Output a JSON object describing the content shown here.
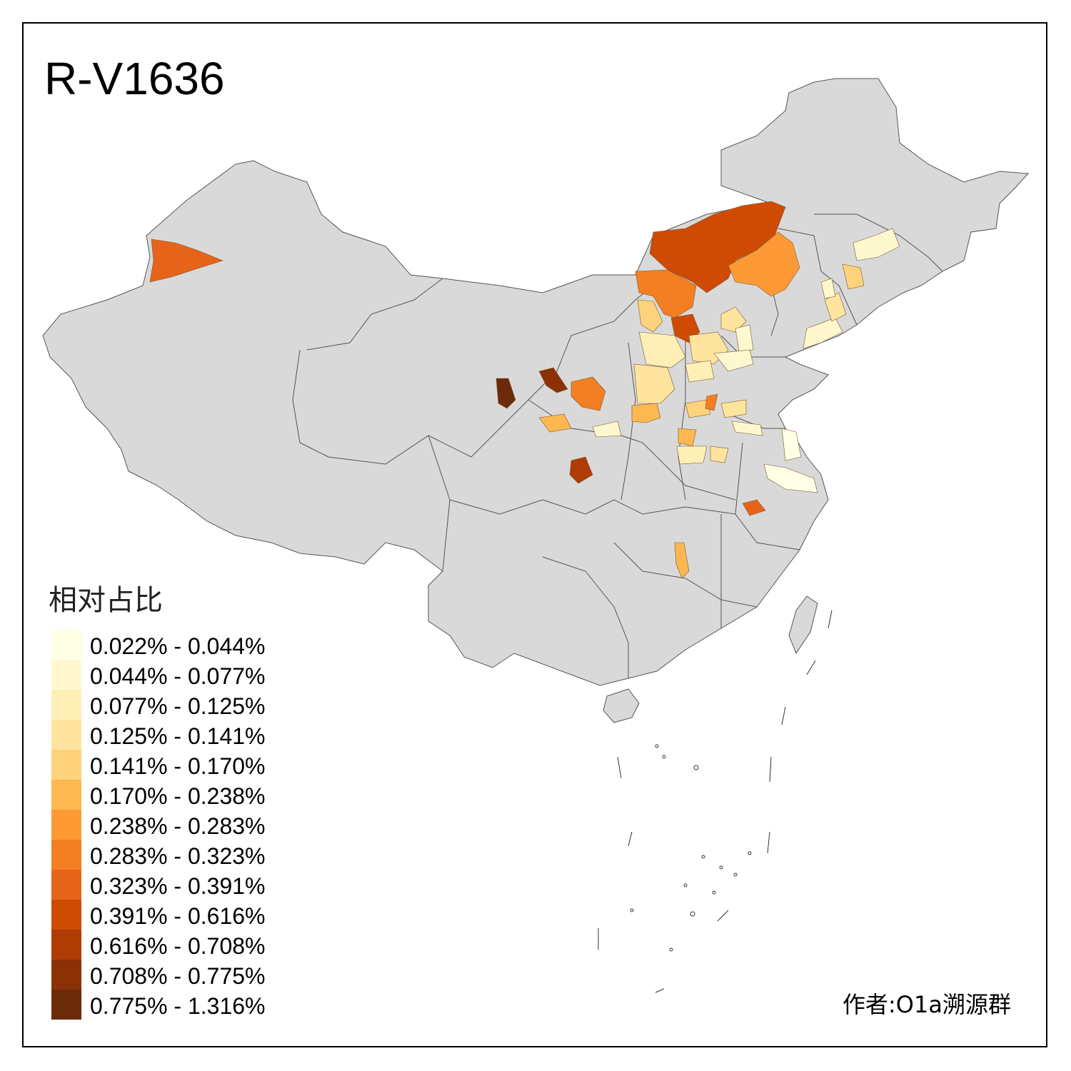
{
  "title": "R-V1636",
  "legend": {
    "title": "相对占比",
    "items": [
      {
        "label": "0.022% - 0.044%",
        "color": "#FFFFE5"
      },
      {
        "label": "0.044% - 0.077%",
        "color": "#FFF8CF"
      },
      {
        "label": "0.077% - 0.125%",
        "color": "#FEEFB6"
      },
      {
        "label": "0.125% - 0.141%",
        "color": "#FEE49E"
      },
      {
        "label": "0.141% - 0.170%",
        "color": "#FED37B"
      },
      {
        "label": "0.170% - 0.238%",
        "color": "#FEB751"
      },
      {
        "label": "0.238% - 0.283%",
        "color": "#FD9A35"
      },
      {
        "label": "0.283% - 0.323%",
        "color": "#F47E22"
      },
      {
        "label": "0.323% - 0.391%",
        "color": "#E5641A"
      },
      {
        "label": "0.391% - 0.616%",
        "color": "#CF4A03"
      },
      {
        "label": "0.616% - 0.708%",
        "color": "#AE3C04"
      },
      {
        "label": "0.708% - 0.775%",
        "color": "#8C3005"
      },
      {
        "label": "0.775% - 1.316%",
        "color": "#6B2A0A"
      }
    ]
  },
  "credit": "作者:O1a溯源群",
  "map": {
    "base_color": "#D9D9D9",
    "border_color": "#555555"
  }
}
